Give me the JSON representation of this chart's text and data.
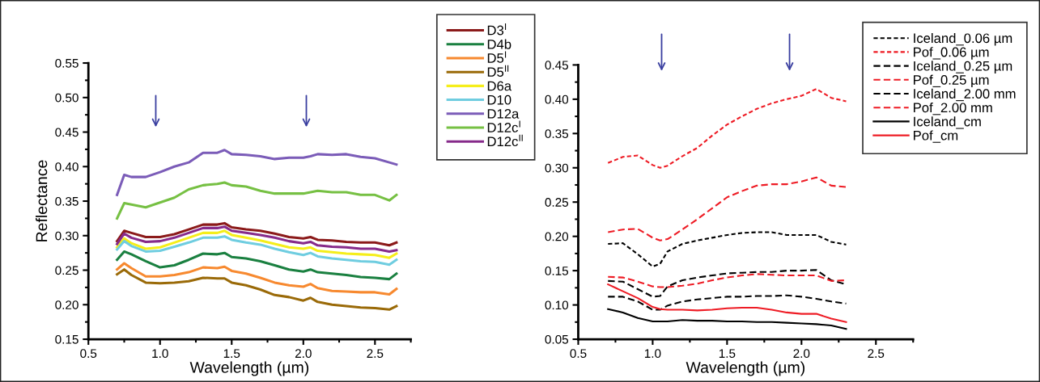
{
  "chart_data": [
    {
      "type": "line",
      "xlabel": "Wavelength (µm)",
      "ylabel": "Reflectance",
      "x": [
        0.7,
        0.75,
        0.8,
        0.9,
        1.0,
        1.1,
        1.2,
        1.3,
        1.4,
        1.45,
        1.5,
        1.6,
        1.7,
        1.8,
        1.9,
        2.0,
        2.05,
        2.1,
        2.2,
        2.3,
        2.4,
        2.5,
        2.6,
        2.65
      ],
      "xlim": [
        0.5,
        2.75
      ],
      "ylim": [
        0.15,
        0.55
      ],
      "xticks": [
        {
          "value": 0.5,
          "label": "0.5"
        },
        {
          "value": 1.0,
          "label": "1.0"
        },
        {
          "value": 1.5,
          "label": "1.5"
        },
        {
          "value": 2.0,
          "label": "2.0"
        },
        {
          "value": 2.5,
          "label": "2.5"
        }
      ],
      "yticks": [
        {
          "value": 0.15,
          "label": "0.15"
        },
        {
          "value": 0.2,
          "label": "0.20"
        },
        {
          "value": 0.25,
          "label": "0.25"
        },
        {
          "value": 0.3,
          "label": "0.30"
        },
        {
          "value": 0.35,
          "label": "0.35"
        },
        {
          "value": 0.4,
          "label": "0.40"
        },
        {
          "value": 0.45,
          "label": "0.45"
        },
        {
          "value": 0.5,
          "label": "0.50"
        },
        {
          "value": 0.55,
          "label": "0.55"
        }
      ],
      "grid": false,
      "legend": "right",
      "line_style": "solid",
      "series": [
        {
          "name": "D3$^{I}$",
          "color": "#8b1a1a",
          "values": [
            0.292,
            0.307,
            0.304,
            0.298,
            0.298,
            0.302,
            0.309,
            0.316,
            0.316,
            0.318,
            0.312,
            0.309,
            0.307,
            0.303,
            0.298,
            0.296,
            0.298,
            0.294,
            0.293,
            0.291,
            0.29,
            0.29,
            0.286,
            0.29
          ]
        },
        {
          "name": "D4b",
          "color": "#1a8040",
          "values": [
            0.265,
            0.277,
            0.273,
            0.263,
            0.254,
            0.257,
            0.265,
            0.274,
            0.273,
            0.275,
            0.269,
            0.267,
            0.263,
            0.257,
            0.251,
            0.248,
            0.251,
            0.247,
            0.245,
            0.243,
            0.24,
            0.239,
            0.237,
            0.245
          ]
        },
        {
          "name": "D5$^{I}$",
          "color": "#f7892f",
          "values": [
            0.251,
            0.26,
            0.253,
            0.241,
            0.241,
            0.243,
            0.247,
            0.254,
            0.253,
            0.255,
            0.249,
            0.245,
            0.239,
            0.232,
            0.228,
            0.226,
            0.23,
            0.224,
            0.22,
            0.219,
            0.218,
            0.218,
            0.215,
            0.223
          ]
        },
        {
          "name": "D5$^{II}$",
          "color": "#9a6a08",
          "values": [
            0.244,
            0.251,
            0.243,
            0.232,
            0.231,
            0.232,
            0.234,
            0.239,
            0.238,
            0.238,
            0.232,
            0.228,
            0.222,
            0.214,
            0.211,
            0.206,
            0.21,
            0.204,
            0.2,
            0.198,
            0.196,
            0.195,
            0.193,
            0.198
          ]
        },
        {
          "name": "D6a",
          "color": "#f5ee1a",
          "values": [
            0.283,
            0.296,
            0.289,
            0.281,
            0.283,
            0.29,
            0.297,
            0.304,
            0.304,
            0.307,
            0.301,
            0.297,
            0.293,
            0.288,
            0.283,
            0.281,
            0.283,
            0.278,
            0.276,
            0.274,
            0.273,
            0.272,
            0.268,
            0.274
          ]
        },
        {
          "name": "D10",
          "color": "#6fcde0",
          "values": [
            0.28,
            0.292,
            0.285,
            0.277,
            0.278,
            0.284,
            0.29,
            0.297,
            0.297,
            0.299,
            0.294,
            0.29,
            0.287,
            0.281,
            0.276,
            0.272,
            0.275,
            0.27,
            0.267,
            0.265,
            0.263,
            0.262,
            0.258,
            0.265
          ]
        },
        {
          "name": "D12a",
          "color": "#7b5cb8",
          "values": [
            0.359,
            0.388,
            0.385,
            0.385,
            0.392,
            0.4,
            0.406,
            0.42,
            0.42,
            0.424,
            0.418,
            0.417,
            0.415,
            0.411,
            0.413,
            0.413,
            0.415,
            0.418,
            0.417,
            0.418,
            0.414,
            0.412,
            0.406,
            0.403
          ]
        },
        {
          "name": "D12c$^{I}$",
          "color": "#76c043",
          "values": [
            0.325,
            0.347,
            0.345,
            0.341,
            0.348,
            0.355,
            0.367,
            0.373,
            0.375,
            0.377,
            0.373,
            0.371,
            0.365,
            0.361,
            0.361,
            0.361,
            0.363,
            0.365,
            0.363,
            0.363,
            0.359,
            0.359,
            0.351,
            0.359
          ]
        },
        {
          "name": "D12c$^{II}$",
          "color": "#862a8a",
          "values": [
            0.288,
            0.303,
            0.297,
            0.291,
            0.292,
            0.297,
            0.304,
            0.311,
            0.311,
            0.313,
            0.307,
            0.304,
            0.301,
            0.297,
            0.292,
            0.289,
            0.291,
            0.286,
            0.284,
            0.283,
            0.281,
            0.281,
            0.277,
            0.279
          ]
        }
      ]
    },
    {
      "type": "line",
      "xlabel": "Wavelength (µm)",
      "x": [
        0.7,
        0.8,
        0.9,
        1.0,
        1.05,
        1.1,
        1.2,
        1.3,
        1.4,
        1.5,
        1.6,
        1.7,
        1.8,
        1.9,
        2.0,
        2.1,
        2.2,
        2.3
      ],
      "xlim": [
        0.5,
        2.75
      ],
      "ylim": [
        0.05,
        0.45
      ],
      "xticks": [
        {
          "value": 0.5,
          "label": "0.5"
        },
        {
          "value": 1.0,
          "label": "1.0"
        },
        {
          "value": 1.5,
          "label": "1.5"
        },
        {
          "value": 2.0,
          "label": "2.0"
        },
        {
          "value": 2.5,
          "label": "2.5"
        }
      ],
      "yticks": [
        {
          "value": 0.05,
          "label": "0.05"
        },
        {
          "value": 0.1,
          "label": "0.10"
        },
        {
          "value": 0.15,
          "label": "0.15"
        },
        {
          "value": 0.2,
          "label": "0.20"
        },
        {
          "value": 0.25,
          "label": "0.25"
        },
        {
          "value": 0.3,
          "label": "0.30"
        },
        {
          "value": 0.35,
          "label": "0.35"
        },
        {
          "value": 0.4,
          "label": "0.40"
        },
        {
          "value": 0.45,
          "label": "0.45"
        }
      ],
      "grid": false,
      "legend": "top right",
      "series": [
        {
          "name": "Iceland_0.06 µm",
          "color": "#000000",
          "line_style": "dotted",
          "values": [
            0.189,
            0.19,
            0.174,
            0.156,
            0.16,
            0.178,
            0.189,
            0.194,
            0.198,
            0.202,
            0.205,
            0.206,
            0.206,
            0.202,
            0.202,
            0.202,
            0.192,
            0.188
          ]
        },
        {
          "name": "Pof_0.06 µm",
          "color": "#ee1c25",
          "line_style": "dotted",
          "values": [
            0.307,
            0.316,
            0.318,
            0.304,
            0.3,
            0.303,
            0.317,
            0.329,
            0.347,
            0.363,
            0.375,
            0.386,
            0.394,
            0.4,
            0.405,
            0.415,
            0.402,
            0.397
          ]
        },
        {
          "name": "Iceland_0.25 µm",
          "color": "#000000",
          "line_style": "dashed",
          "values": [
            0.135,
            0.134,
            0.123,
            0.112,
            0.113,
            0.127,
            0.136,
            0.14,
            0.143,
            0.146,
            0.147,
            0.148,
            0.148,
            0.15,
            0.15,
            0.151,
            0.136,
            0.13
          ]
        },
        {
          "name": "Pof_0.25 µm",
          "color": "#ee1c25",
          "line_style": "dashed",
          "values": [
            0.206,
            0.21,
            0.211,
            0.198,
            0.194,
            0.196,
            0.21,
            0.225,
            0.241,
            0.257,
            0.266,
            0.274,
            0.276,
            0.276,
            0.28,
            0.286,
            0.274,
            0.272
          ]
        },
        {
          "name": "Iceland_2.00 mm",
          "color": "#000000",
          "line_style": "dashed",
          "values": [
            0.112,
            0.112,
            0.105,
            0.093,
            0.093,
            0.099,
            0.105,
            0.108,
            0.11,
            0.112,
            0.112,
            0.113,
            0.113,
            0.114,
            0.112,
            0.109,
            0.105,
            0.102
          ]
        },
        {
          "name": "Pof_2.00 mm",
          "color": "#ee1c25",
          "line_style": "dashed",
          "values": [
            0.141,
            0.14,
            0.134,
            0.127,
            0.126,
            0.126,
            0.128,
            0.131,
            0.136,
            0.14,
            0.143,
            0.145,
            0.144,
            0.143,
            0.143,
            0.143,
            0.135,
            0.136
          ]
        },
        {
          "name": "Iceland_cm",
          "color": "#000000",
          "line_style": "solid",
          "values": [
            0.094,
            0.089,
            0.081,
            0.076,
            0.076,
            0.076,
            0.078,
            0.077,
            0.077,
            0.076,
            0.076,
            0.075,
            0.075,
            0.074,
            0.073,
            0.072,
            0.07,
            0.065
          ]
        },
        {
          "name": "Pof_cm",
          "color": "#ee1c25",
          "line_style": "solid",
          "values": [
            0.13,
            0.12,
            0.11,
            0.097,
            0.094,
            0.093,
            0.093,
            0.092,
            0.093,
            0.095,
            0.096,
            0.096,
            0.093,
            0.089,
            0.087,
            0.087,
            0.08,
            0.075
          ]
        }
      ]
    }
  ]
}
